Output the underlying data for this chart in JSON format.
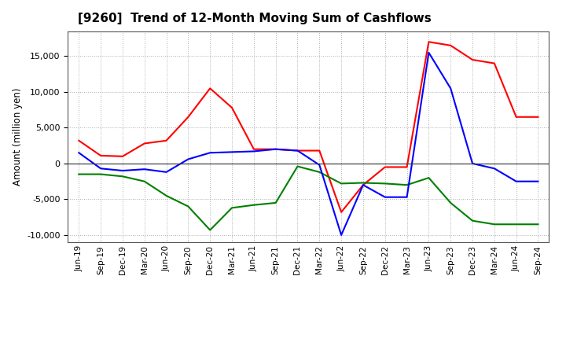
{
  "title": "[9260]  Trend of 12-Month Moving Sum of Cashflows",
  "ylabel": "Amount (million yen)",
  "xlabels": [
    "Jun-19",
    "Sep-19",
    "Dec-19",
    "Mar-20",
    "Jun-20",
    "Sep-20",
    "Dec-20",
    "Mar-21",
    "Jun-21",
    "Sep-21",
    "Dec-21",
    "Mar-22",
    "Jun-22",
    "Sep-22",
    "Dec-22",
    "Mar-23",
    "Jun-23",
    "Sep-23",
    "Dec-23",
    "Mar-24",
    "Jun-24",
    "Sep-24"
  ],
  "operating": [
    3200,
    1100,
    1000,
    2800,
    3200,
    6500,
    10500,
    7800,
    2000,
    2000,
    1800,
    1800,
    -6800,
    -3000,
    -500,
    -500,
    17000,
    16500,
    14500,
    14000,
    6500,
    6500
  ],
  "investing": [
    -1500,
    -1500,
    -1800,
    -2500,
    -4500,
    -6000,
    -9300,
    -6200,
    -5800,
    -5500,
    -400,
    -1200,
    -2800,
    -2700,
    -2800,
    -3000,
    -2000,
    -5500,
    -8000,
    -8500,
    -8500,
    -8500
  ],
  "free": [
    1500,
    -700,
    -1000,
    -800,
    -1200,
    600,
    1500,
    1600,
    1700,
    2000,
    1800,
    -200,
    -10000,
    -3000,
    -4700,
    -4700,
    15500,
    10500,
    0,
    -700,
    -2500,
    -2500
  ],
  "ylim": [
    -11000,
    18500
  ],
  "yticks": [
    -10000,
    -5000,
    0,
    5000,
    10000,
    15000
  ],
  "colors": {
    "operating": "#ff0000",
    "investing": "#008000",
    "free": "#0000ff"
  },
  "bg_color": "#ffffff",
  "grid_color": "#999999"
}
